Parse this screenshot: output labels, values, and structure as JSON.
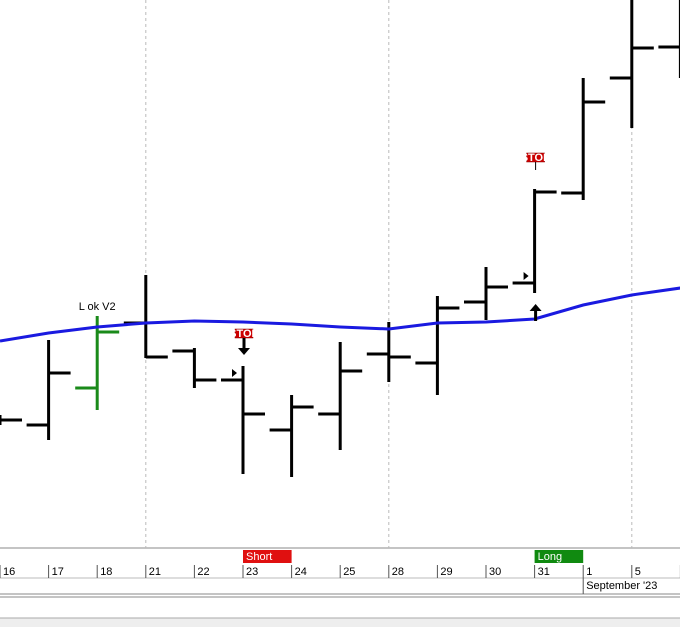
{
  "chart_data": {
    "type": "ohlc",
    "categories": [
      "16",
      "17",
      "18",
      "21",
      "22",
      "23",
      "24",
      "25",
      "28",
      "29",
      "30",
      "31",
      "1",
      "5",
      null
    ],
    "open": [
      128,
      123,
      160,
      225,
      197,
      168,
      118,
      134,
      194,
      185,
      246,
      265,
      355,
      470,
      501
    ],
    "high": [
      133,
      208,
      232,
      273,
      200,
      182,
      153,
      206,
      226,
      252,
      281,
      359,
      470,
      548,
      548
    ],
    "low": [
      123,
      108,
      138,
      190,
      160,
      74,
      71,
      98,
      166,
      153,
      228,
      255,
      348,
      420,
      470
    ],
    "close": [
      128,
      175,
      216,
      191,
      168,
      134,
      141,
      177,
      191,
      240,
      261,
      356,
      446,
      500,
      501
    ],
    "bar_colors": [
      "#000000",
      "#000000",
      "#1a8a1a",
      "#000000",
      "#000000",
      "#000000",
      "#000000",
      "#000000",
      "#000000",
      "#000000",
      "#000000",
      "#000000",
      "#000000",
      "#000000",
      "#000000"
    ],
    "line": {
      "color": "#1a1ae0",
      "values": [
        207,
        215,
        221,
        225,
        227,
        226,
        224,
        221,
        219,
        225,
        226,
        229,
        243,
        253,
        260
      ]
    },
    "ylim": [
      0,
      548
    ],
    "week_separators": [
      3,
      8,
      13
    ],
    "annotations": [
      {
        "text": "L ok V2",
        "index": 2
      }
    ],
    "stops": [
      {
        "text": "STOP",
        "index": 5,
        "direction": "down"
      },
      {
        "text": "STOP",
        "index": 11,
        "direction": "up"
      }
    ],
    "signals": [
      {
        "text": "Short",
        "index": 5,
        "color": "#e01010"
      },
      {
        "text": "Long",
        "index": 11,
        "color": "#108a10"
      }
    ],
    "month_label": {
      "text": "September '23",
      "index": 12
    }
  }
}
